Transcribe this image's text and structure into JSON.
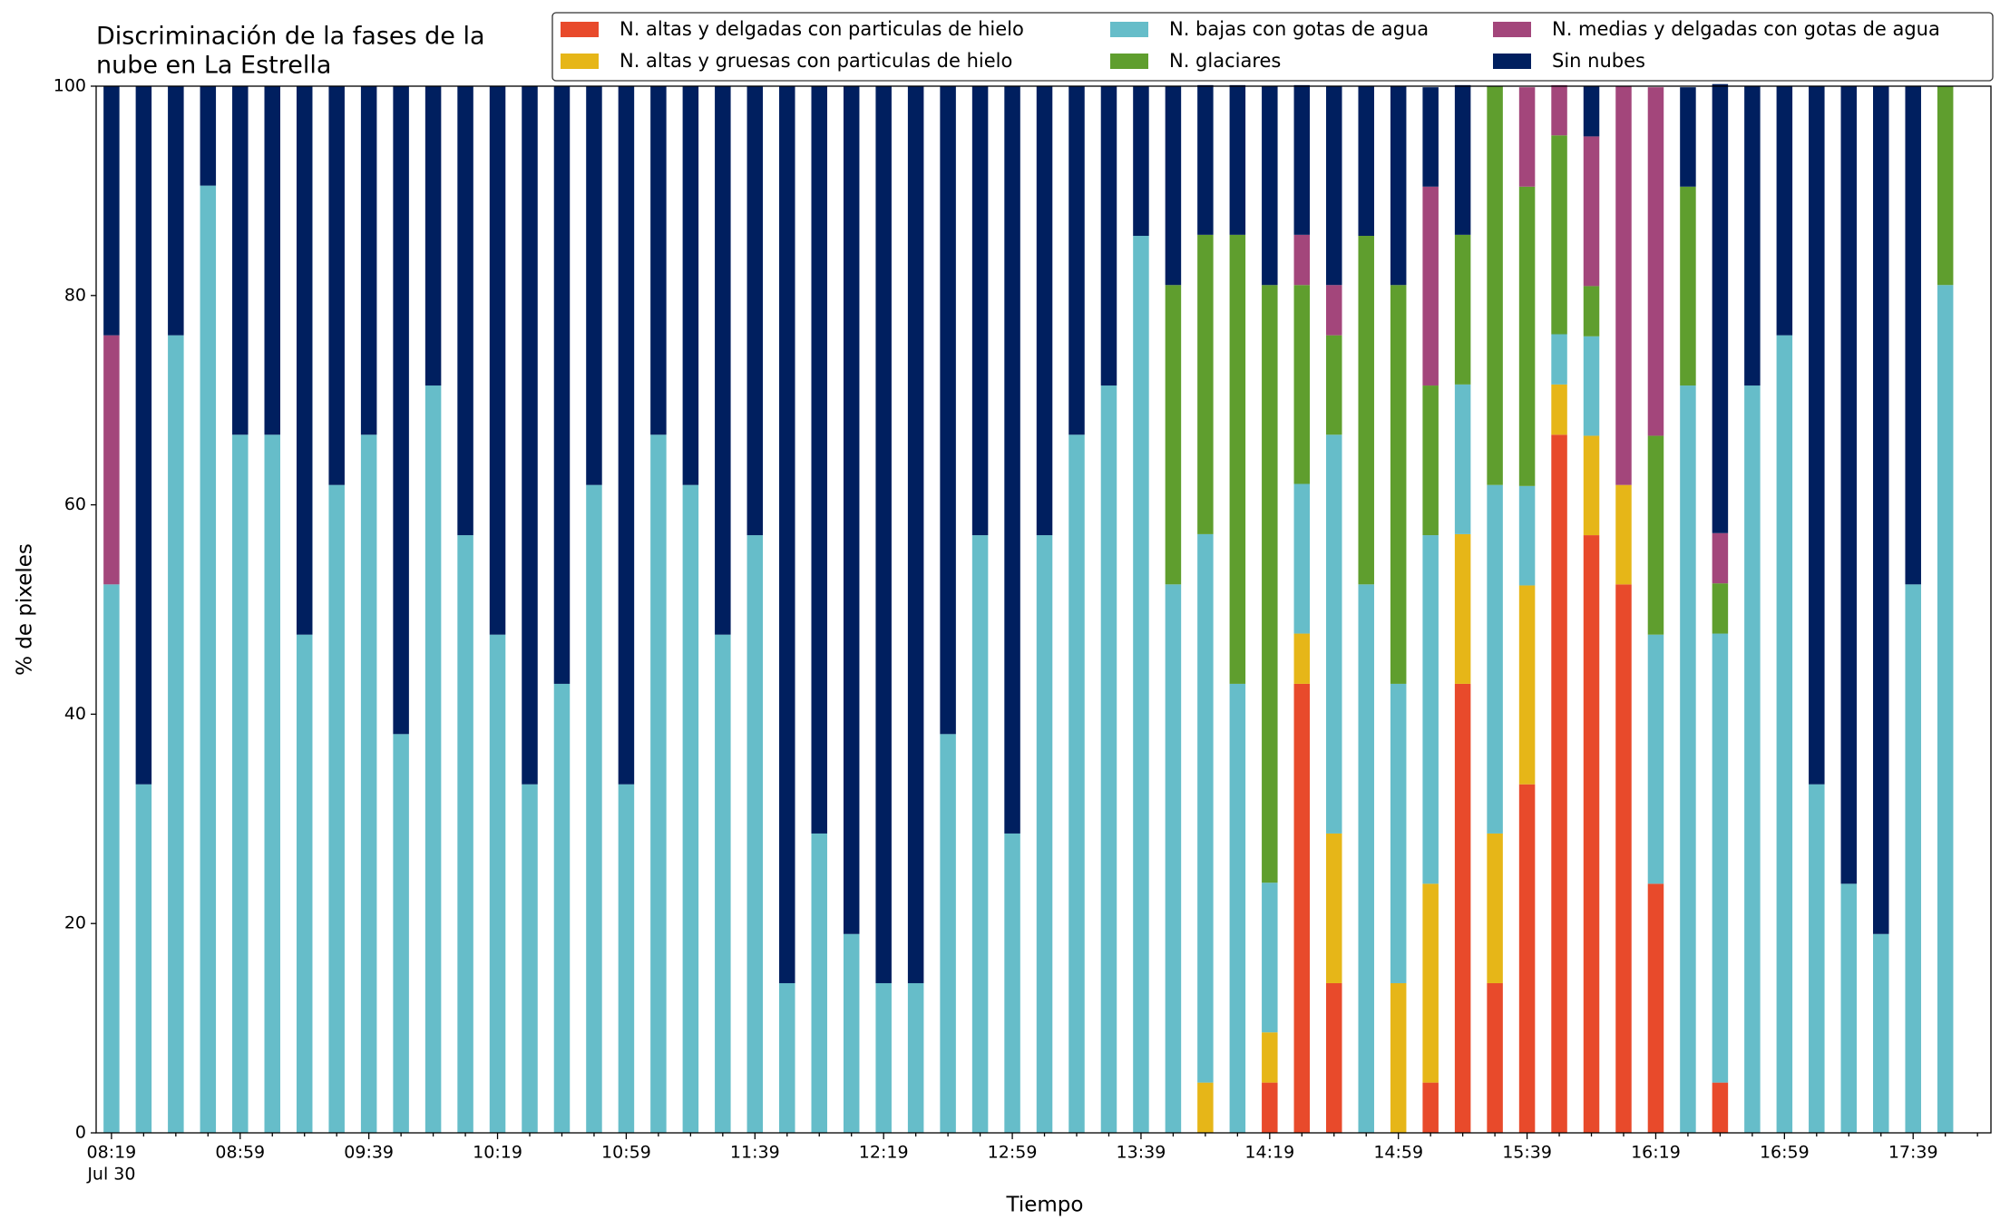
{
  "chart_data": {
    "type": "stacked_bar",
    "title": [
      "Discriminación de la fases de la",
      "nube en La Estrella"
    ],
    "xlabel": "Tiempo",
    "ylabel": "% de pixeles",
    "x_sublabel": "Jul 30",
    "categories": [
      "08:19",
      null,
      null,
      null,
      "08:59",
      null,
      null,
      null,
      "09:39",
      null,
      null,
      null,
      "10:19",
      null,
      null,
      null,
      "10:59",
      null,
      null,
      null,
      "11:39",
      null,
      null,
      null,
      "12:19",
      null,
      null,
      null,
      "12:59",
      null,
      null,
      null,
      "13:39",
      null,
      null,
      null,
      "14:19",
      null,
      null,
      null,
      "14:59",
      null,
      null,
      null,
      "15:39",
      null,
      null,
      null,
      "16:19",
      null,
      null,
      null,
      "16:59",
      null,
      null,
      null,
      "17:39",
      null
    ],
    "series": [
      {
        "name": "N. altas y delgadas con particulas de hielo",
        "color": "#e84a2b",
        "values": [
          0,
          0,
          0,
          0,
          0,
          0,
          0,
          0,
          0,
          0,
          0,
          0,
          0,
          0,
          0,
          0,
          0,
          0,
          0,
          0,
          0,
          0,
          0,
          0,
          0,
          0,
          0,
          0,
          0,
          0,
          0,
          0,
          0,
          0,
          0,
          0,
          4.8,
          42.9,
          14.3,
          0,
          0,
          4.8,
          42.9,
          14.3,
          33.3,
          66.7,
          57.1,
          52.4,
          23.8,
          0,
          4.8,
          0,
          0,
          0,
          0,
          0,
          0,
          0
        ]
      },
      {
        "name": "N. altas y gruesas con particulas de hielo",
        "color": "#e6b618",
        "values": [
          0,
          0,
          0,
          0,
          0,
          0,
          0,
          0,
          0,
          0,
          0,
          0,
          0,
          0,
          0,
          0,
          0,
          0,
          0,
          0,
          0,
          0,
          0,
          0,
          0,
          0,
          0,
          0,
          0,
          0,
          0,
          0,
          0,
          0,
          4.8,
          0,
          4.8,
          4.8,
          14.3,
          0,
          14.3,
          19.0,
          14.3,
          14.3,
          19.0,
          4.8,
          9.5,
          9.5,
          0,
          0,
          0,
          0,
          0,
          0,
          0,
          0,
          0,
          0
        ]
      },
      {
        "name": "N. bajas con gotas de agua",
        "color": "#66bdc9",
        "values": [
          52.4,
          33.3,
          76.2,
          90.5,
          66.7,
          66.7,
          47.6,
          61.9,
          66.7,
          38.1,
          71.4,
          57.1,
          47.6,
          33.3,
          42.9,
          61.9,
          33.3,
          66.7,
          61.9,
          47.6,
          57.1,
          14.3,
          28.6,
          19.0,
          14.3,
          14.3,
          38.1,
          57.1,
          28.6,
          57.1,
          66.7,
          71.4,
          85.7,
          52.4,
          52.4,
          42.9,
          14.3,
          14.3,
          38.1,
          52.4,
          28.6,
          33.3,
          14.3,
          33.3,
          9.5,
          4.8,
          9.5,
          0,
          23.8,
          71.4,
          42.9,
          71.4,
          76.2,
          33.3,
          23.8,
          19.0,
          52.4,
          81.0
        ]
      },
      {
        "name": "N. glaciares",
        "color": "#5f9e2e",
        "values": [
          0,
          0,
          0,
          0,
          0,
          0,
          0,
          0,
          0,
          0,
          0,
          0,
          0,
          0,
          0,
          0,
          0,
          0,
          0,
          0,
          0,
          0,
          0,
          0,
          0,
          0,
          0,
          0,
          0,
          0,
          0,
          0,
          0,
          28.6,
          28.6,
          42.9,
          57.1,
          19.0,
          9.5,
          33.3,
          38.1,
          14.3,
          14.3,
          38.1,
          28.6,
          19.0,
          4.8,
          0,
          19.0,
          19.0,
          4.8,
          0,
          0,
          0,
          0,
          0,
          0,
          19.0
        ]
      },
      {
        "name": "N. medias y delgadas con gotas de agua",
        "color": "#a3467b",
        "values": [
          23.8,
          0,
          0,
          0,
          0,
          0,
          0,
          0,
          0,
          0,
          0,
          0,
          0,
          0,
          0,
          0,
          0,
          0,
          0,
          0,
          0,
          0,
          0,
          0,
          0,
          0,
          0,
          0,
          0,
          0,
          0,
          0,
          0,
          0,
          0,
          0,
          0,
          4.8,
          4.8,
          0,
          0,
          19.0,
          0,
          0,
          9.5,
          4.8,
          14.3,
          38.1,
          33.3,
          0,
          4.8,
          0,
          0,
          0,
          0,
          0,
          0,
          0
        ]
      },
      {
        "name": "Sin nubes",
        "color": "#001f5f",
        "values": [
          23.8,
          66.7,
          23.8,
          9.5,
          33.3,
          33.3,
          52.4,
          38.1,
          33.3,
          61.9,
          28.6,
          42.9,
          52.4,
          66.7,
          57.1,
          38.1,
          66.7,
          33.3,
          38.1,
          52.4,
          42.9,
          85.7,
          71.4,
          81.0,
          85.7,
          85.7,
          61.9,
          42.9,
          71.4,
          42.9,
          33.3,
          28.6,
          14.3,
          19.0,
          14.3,
          14.3,
          19.0,
          14.3,
          19.0,
          14.3,
          19.0,
          9.5,
          14.3,
          0,
          0,
          0,
          4.8,
          0,
          0,
          9.5,
          42.9,
          28.6,
          23.8,
          66.7,
          76.2,
          81.0,
          47.6,
          0
        ]
      }
    ],
    "ylim": [
      0,
      100
    ],
    "yticks": [
      0,
      20,
      40,
      60,
      80,
      100
    ],
    "grid": false,
    "legend": "top right"
  }
}
